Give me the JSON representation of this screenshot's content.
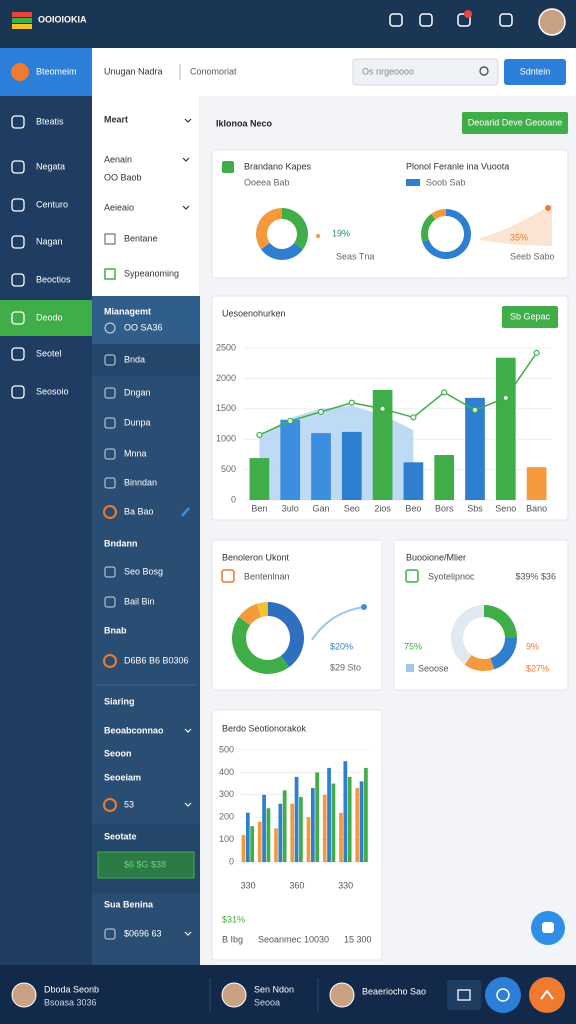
{
  "header": {
    "logo": "OOIOIOKIA"
  },
  "toolbar": {
    "menu": "Bteomeim",
    "crumbs": [
      "Unugan Nadra",
      "Conomoriat"
    ],
    "search": "Os nrgeoooo",
    "button": "Sdntein"
  },
  "nav": {
    "items": [
      "Bteatis",
      "Negata",
      "Centuro",
      "Nagan",
      "Beoctios",
      "Deodo",
      "Seotel",
      "Seosoio"
    ],
    "active": 5
  },
  "subnav": {
    "title": "Meart",
    "items": [
      "Aenain",
      "OO Baob",
      "Aeieaio",
      "Bentane",
      "Sypeanoming"
    ],
    "groups": [
      "Mianagemt",
      "OO SA36",
      "Bnda",
      "Dngan",
      "Dunpa",
      "Mnna",
      "Binndan",
      "Ba Bao",
      "Bndann",
      "Seo Bosg",
      "Bail Bin",
      "Bnab",
      "D6B6 B6 B0306",
      "Siaring",
      "Beoabconnao",
      "Seoon",
      "Seoeiam",
      "53",
      "Seotate",
      "$6 $G $38",
      "Sua Benina",
      "$0696 63"
    ]
  },
  "page": {
    "title": "Iklonoa Neco",
    "button": "Deoarid Deve Geooane"
  },
  "footer": {
    "users": [
      {
        "name": "Dboda Seonb",
        "role": "Bsoasa 3036"
      },
      {
        "name": "Sen Ndon",
        "role": "Seooa"
      },
      {
        "name": "Beaeriocho Sao"
      }
    ]
  },
  "chart_data": [
    {
      "type": "donut",
      "title": "Brandano Kapes",
      "subtitle": "Ooeea Bab",
      "values": [
        35,
        30,
        35
      ],
      "colors": [
        "#3fae49",
        "#2f7fd0",
        "#f59a3c"
      ],
      "kpi": "19%",
      "caption": "Seas Tna"
    },
    {
      "type": "donut",
      "title": "Plonol Feranle ina Vuoota",
      "subtitle": "Soob Sab",
      "values": [
        70,
        20,
        10
      ],
      "colors": [
        "#2f7fd0",
        "#3fae49",
        "#f59a3c"
      ],
      "kpi": "35%",
      "caption": "Seeb Sabo"
    },
    {
      "type": "barline",
      "title": "Uesoenohurken",
      "button": "Sb Gepac",
      "categories": [
        "Ben",
        "3ulo",
        "Gan",
        "Seo",
        "2ios",
        "Beo",
        "Bors",
        "Sbs",
        "Seno",
        "Bano"
      ],
      "values": [
        690,
        1320,
        1100,
        1120,
        1810,
        620,
        740,
        1680,
        2340,
        540
      ],
      "colors": [
        "#3fae49",
        "#3b8ee0",
        "#3b8ee0",
        "#2f7fd0",
        "#3fae49",
        "#2f7fd0",
        "#3fae49",
        "#2f7fd0",
        "#3fae49",
        "#f59a3c"
      ],
      "area": [
        1050,
        1350,
        1500,
        1550,
        1400,
        1150
      ],
      "area_color": "#a9cdf0",
      "line": [
        1070,
        1300,
        1450,
        1600,
        1500,
        1360,
        1770,
        1480,
        1680,
        2420
      ],
      "line_color": "#3fae49",
      "ylim": [
        0,
        2500
      ],
      "yticks": [
        0,
        500,
        1000,
        1500,
        2000,
        2500
      ],
      "grid": true
    },
    {
      "type": "donut",
      "title": "Benoleron Ukont",
      "subtitle": "Bentenlnan",
      "values": [
        40,
        45,
        10,
        5
      ],
      "colors": [
        "#2f6fc0",
        "#3fae49",
        "#f59a3c",
        "#f2c230"
      ],
      "kpi": "$20%",
      "caption": "$29 Sto"
    },
    {
      "type": "donut",
      "title": "Buooione/Mlier",
      "subtitle": "Syotelipnoc",
      "note": "$39% $36",
      "values": [
        25,
        20,
        15,
        40
      ],
      "colors": [
        "#3fae49",
        "#2f7fd0",
        "#f59a3c",
        "#dfe9ef"
      ],
      "kpi": "75%",
      "kpi2": "9%",
      "legend": "Seoose",
      "caption": "$27%"
    },
    {
      "type": "bars",
      "title": "Berdo Seotionorakok",
      "categories": [
        "330",
        null,
        null,
        "360",
        null,
        null,
        "330",
        null
      ],
      "series": [
        {
          "color": "#f59a3c",
          "values": [
            120,
            180,
            150,
            260,
            200,
            300,
            220,
            330
          ]
        },
        {
          "color": "#2f7fd0",
          "values": [
            220,
            300,
            260,
            380,
            330,
            420,
            450,
            360
          ]
        },
        {
          "color": "#3fae49",
          "values": [
            160,
            240,
            320,
            290,
            400,
            350,
            380,
            420
          ]
        }
      ],
      "ylim": [
        0,
        500
      ],
      "yticks": [
        0,
        100,
        200,
        300,
        400,
        500
      ],
      "kpi": "$31%",
      "footer": [
        "B Ibg",
        "Seoanmec",
        "10030",
        "15 300"
      ]
    }
  ]
}
